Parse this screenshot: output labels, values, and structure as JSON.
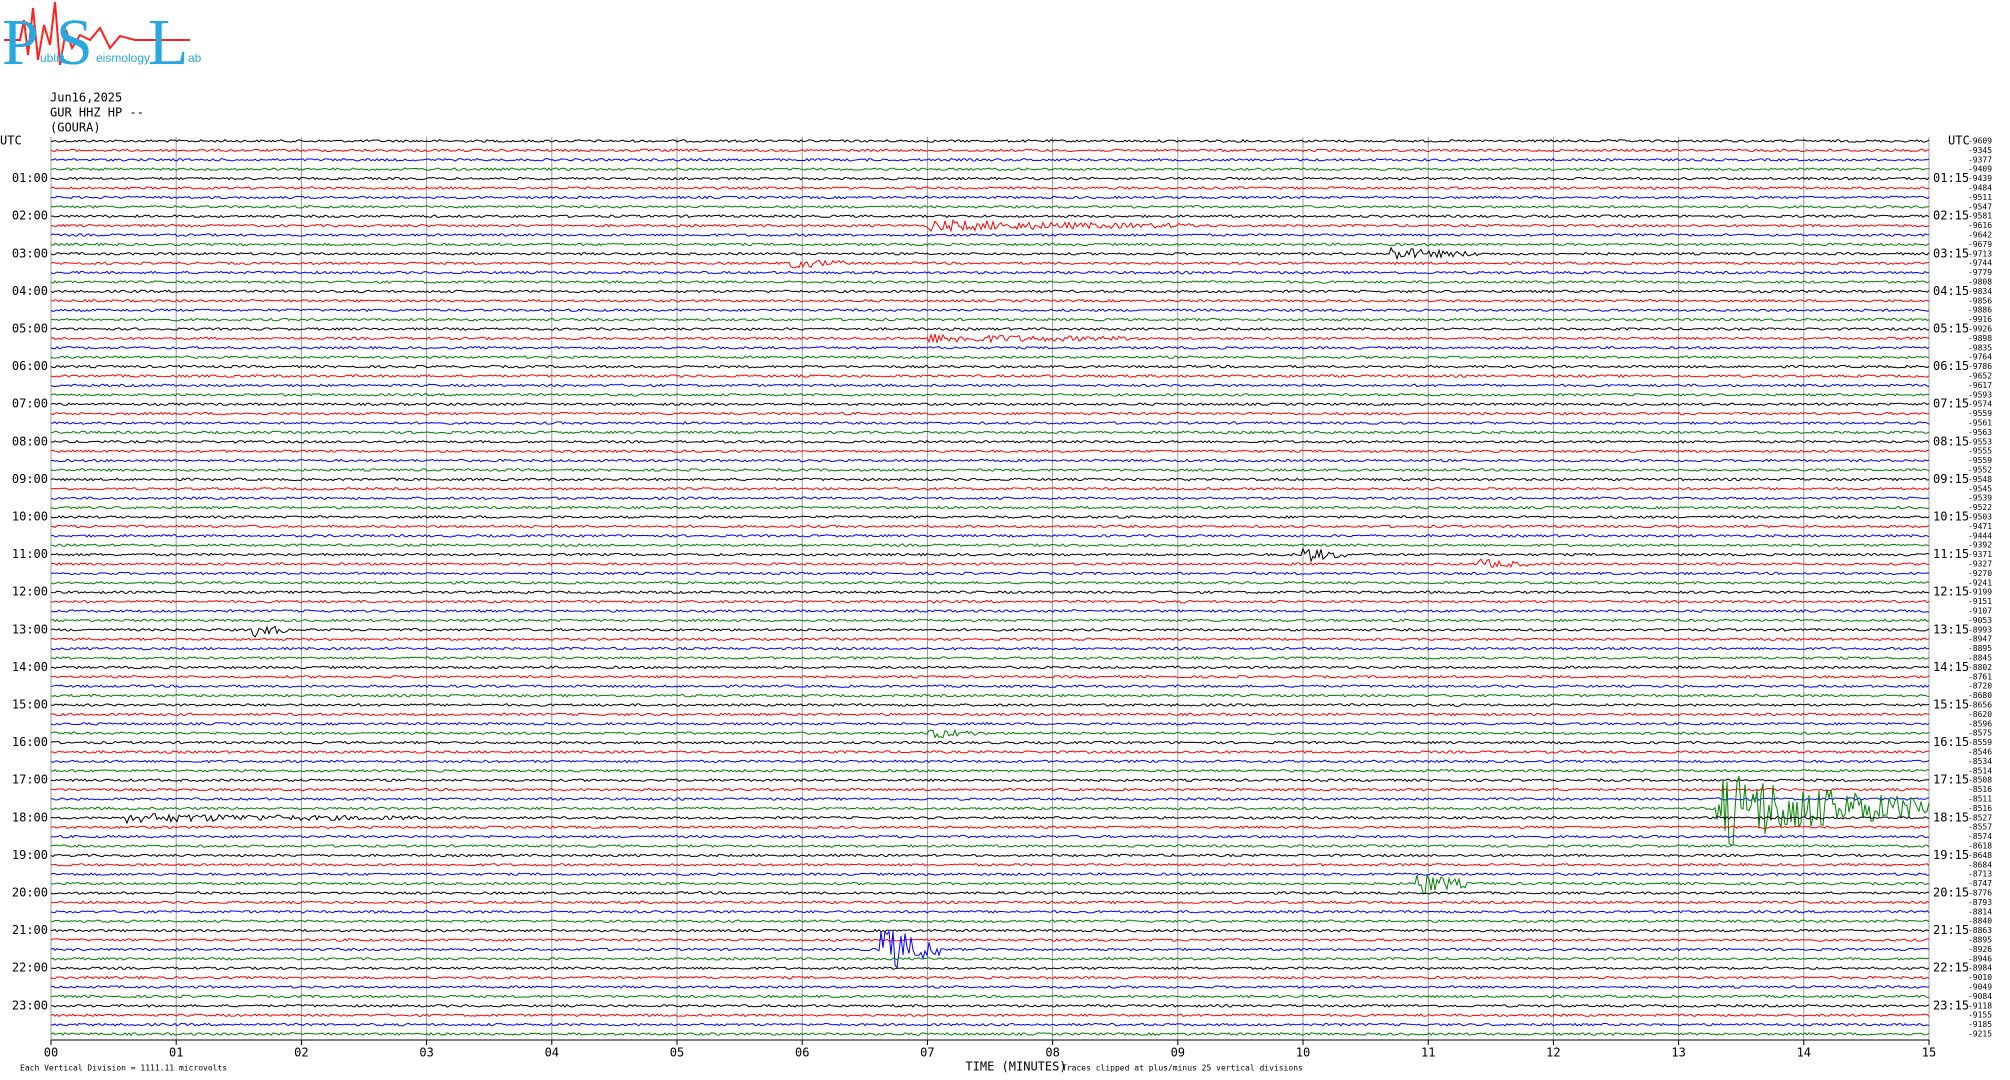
{
  "logo": {
    "letters": [
      "P",
      "S",
      "L"
    ],
    "words": [
      "ublic",
      "eismology",
      "ab"
    ]
  },
  "header": {
    "date": "Jun16,2025",
    "channel": "GUR HHZ HP --",
    "station": "(GOURA)"
  },
  "utc_left": "UTC",
  "utc_right": "UTC",
  "left_labels": [
    "01:00",
    "02:00",
    "03:00",
    "04:00",
    "05:00",
    "06:00",
    "07:00",
    "08:00",
    "09:00",
    "10:00",
    "11:00",
    "12:00",
    "13:00",
    "14:00",
    "15:00",
    "16:00",
    "17:00",
    "18:00",
    "19:00",
    "20:00",
    "21:00",
    "22:00",
    "23:00"
  ],
  "right_labels": [
    "01:15",
    "02:15",
    "03:15",
    "04:15",
    "05:15",
    "06:15",
    "07:15",
    "08:15",
    "09:15",
    "10:15",
    "11:15",
    "12:15",
    "13:15",
    "14:15",
    "15:15",
    "16:15",
    "17:15",
    "18:15",
    "19:15",
    "20:15",
    "21:15",
    "22:15",
    "23:15"
  ],
  "trace_offsets": [
    -9609,
    -9345,
    -9377,
    -9409,
    -9439,
    -9484,
    -9511,
    -9547,
    -9581,
    -9616,
    -9642,
    -9679,
    -9713,
    -9744,
    -9779,
    -9808,
    -9834,
    -9856,
    -9886,
    -9916,
    -9926,
    -9898,
    -9835,
    -9764,
    -9786,
    -9652,
    -9617,
    -9593,
    -9574,
    -9559,
    -9561,
    -9563,
    -9553,
    -9555,
    -9559,
    -9552,
    -9548,
    -9545,
    -9539,
    -9522,
    -9503,
    -9471,
    -9444,
    -9392,
    -9371,
    -9327,
    -9270,
    -9241,
    -9199,
    -9151,
    -9107,
    -9053,
    -8993,
    -8947,
    -8895,
    -8845,
    -8802,
    -8761,
    -8720,
    -8680,
    -8656,
    -8620,
    -8596,
    -8575,
    -8559,
    -8546,
    -8534,
    -8514,
    -8508,
    -8516,
    -8511,
    -8516,
    -8527,
    -8557,
    -8574,
    -8618,
    -8648,
    -8684,
    -8713,
    -8747,
    -8776,
    -8793,
    -8814,
    -8840,
    -8863,
    -8895,
    -8926,
    -8946,
    -8984,
    -9010,
    -9049,
    -9084,
    -9118,
    -9155,
    -9185,
    -9215
  ],
  "trace_colors": [
    "#000000",
    "#ff0000",
    "#0000ff",
    "#008000"
  ],
  "minute_labels": [
    "00",
    "01",
    "02",
    "03",
    "04",
    "05",
    "06",
    "07",
    "08",
    "09",
    "10",
    "11",
    "12",
    "13",
    "14",
    "15"
  ],
  "x_axis_title": "TIME (MINUTES)",
  "footer_left": "Each Vertical Division = 1111.11 microvolts",
  "footer_right": "Traces clipped at plus/minus 25 vertical divisions"
}
